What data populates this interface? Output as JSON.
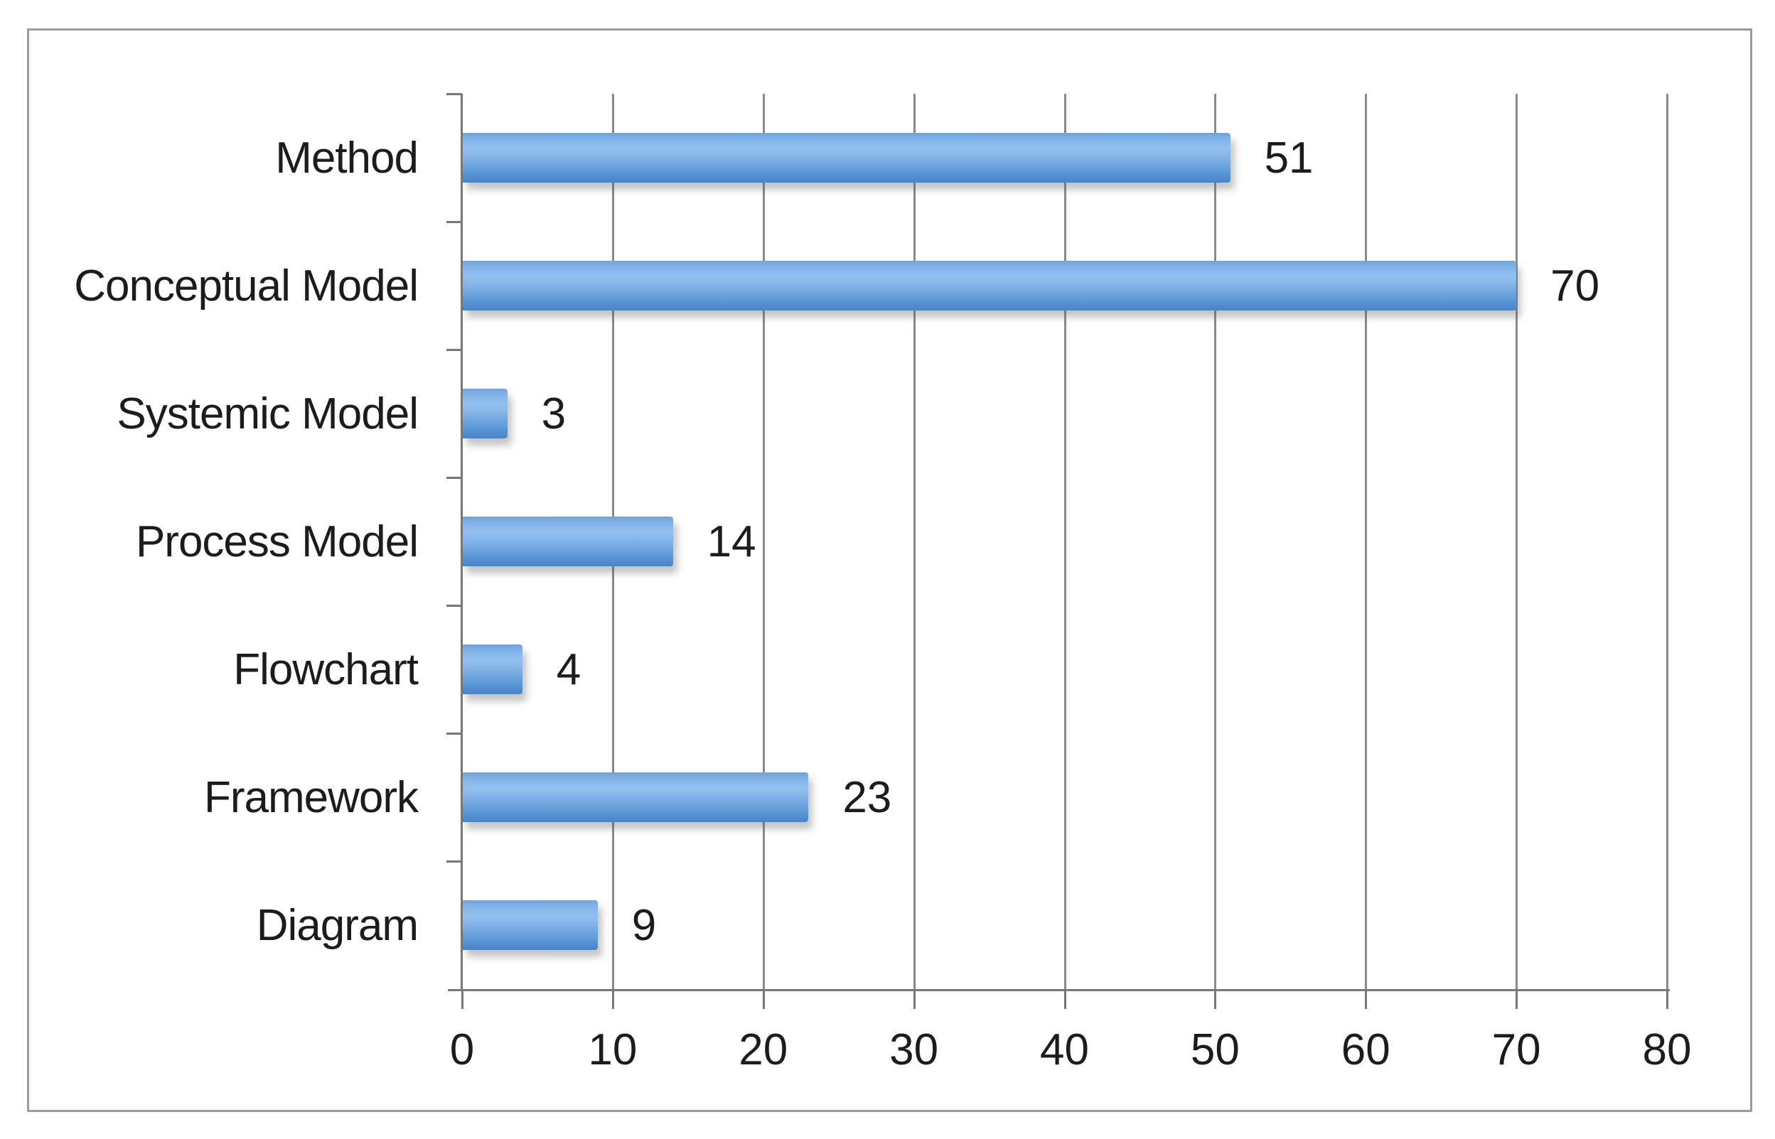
{
  "chart_data": {
    "type": "bar",
    "orientation": "horizontal",
    "title": "",
    "xlabel": "",
    "ylabel": "",
    "categories": [
      "Method",
      "Conceptual Model",
      "Systemic Model",
      "Process Model",
      "Flowchart",
      "Framework",
      "Diagram"
    ],
    "values": [
      51,
      70,
      3,
      14,
      4,
      23,
      9
    ],
    "data_labels": [
      "51",
      "70",
      "3",
      "14",
      "4",
      "23",
      "9"
    ],
    "xlim": [
      0,
      80
    ],
    "xticks": [
      0,
      10,
      20,
      30,
      40,
      50,
      60,
      70,
      80
    ],
    "grid": "vertical-gridlines-on",
    "legend": "none",
    "colors": {
      "bar_main": "#6FA7E0",
      "bar_highlight": "#93C0EE",
      "bar_base": "#4B85C8",
      "gridline": "#8A8A8A",
      "axis": "#777777",
      "text": "#1C1C1C",
      "frame_border": "#9B9B9B",
      "background": "#FFFFFF"
    }
  }
}
